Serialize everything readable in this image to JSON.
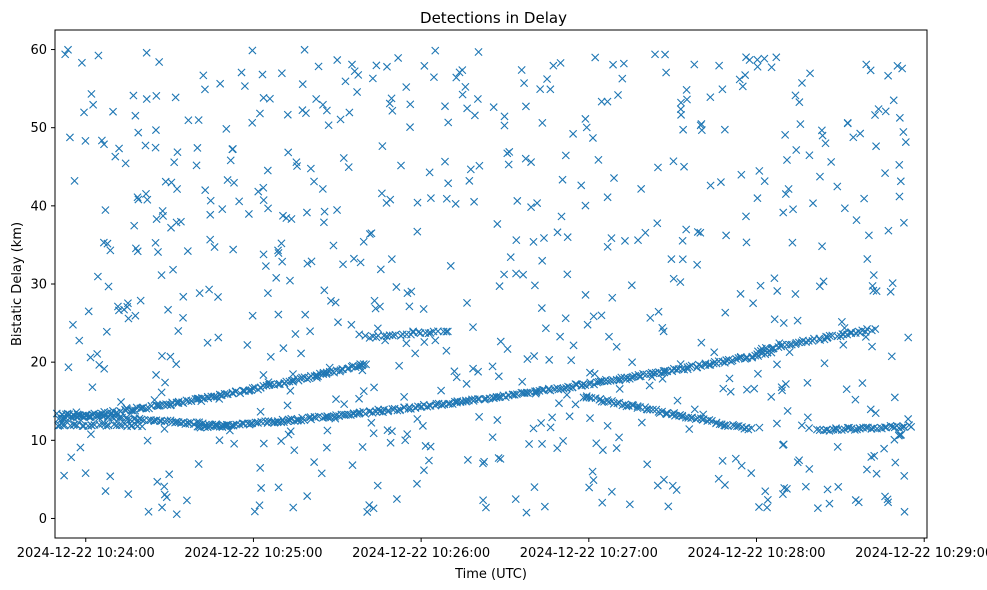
{
  "chart_data": {
    "type": "scatter",
    "title": "Detections in Delay",
    "xlabel": "Time (UTC)",
    "ylabel": "Bistatic Delay (km)",
    "xlim_seconds": [
      -11,
      301
    ],
    "ylim": [
      -2.5,
      62.5
    ],
    "x_origin": "2024-12-22 10:24:00",
    "xticks": [
      {
        "value": 0,
        "label": "2024-12-22 10:24:00"
      },
      {
        "value": 60,
        "label": "2024-12-22 10:25:00"
      },
      {
        "value": 120,
        "label": "2024-12-22 10:26:00"
      },
      {
        "value": 180,
        "label": "2024-12-22 10:27:00"
      },
      {
        "value": 240,
        "label": "2024-12-22 10:28:00"
      },
      {
        "value": 300,
        "label": "2024-12-22 10:29:00"
      }
    ],
    "yticks": [
      0,
      10,
      20,
      30,
      40,
      50,
      60
    ],
    "marker": "x",
    "color": "#1f77b4",
    "series": [
      {
        "name": "track-rising-1",
        "x_range": [
          -10,
          100
        ],
        "y_start": 12.8,
        "y_end": 19.8,
        "curve": "convex",
        "count": 150
      },
      {
        "name": "track-flat-upper-1",
        "x_range": [
          100,
          130
        ],
        "y_start": 23.2,
        "y_end": 24.0,
        "curve": "linear",
        "count": 25
      },
      {
        "name": "track-decaying-1",
        "x_range": [
          -10,
          50
        ],
        "y_start": 13.4,
        "y_end": 11.9,
        "curve": "linear",
        "count": 70
      },
      {
        "name": "track-rising-2",
        "x_range": [
          40,
          245
        ],
        "y_start": 11.6,
        "y_end": 21.2,
        "curve": "convex",
        "count": 260
      },
      {
        "name": "track-mid",
        "x_range": [
          178,
          238
        ],
        "y_start": 15.6,
        "y_end": 11.4,
        "curve": "linear",
        "count": 70
      },
      {
        "name": "track-rising-3",
        "x_range": [
          240,
          282
        ],
        "y_start": 21.5,
        "y_end": 24.2,
        "curve": "linear",
        "count": 45
      },
      {
        "name": "track-flat-lower-end",
        "x_range": [
          262,
          295
        ],
        "y_start": 11.3,
        "y_end": 11.8,
        "curve": "linear",
        "count": 40
      },
      {
        "name": "track-flat-lower-start",
        "x_range": [
          -10,
          20
        ],
        "y_start": 12.0,
        "y_end": 11.9,
        "curve": "linear",
        "count": 30
      },
      {
        "name": "clutter-noise",
        "x_range": [
          -10,
          295
        ],
        "y_range": [
          0.5,
          60
        ],
        "distribution": "uniform",
        "count": 700
      }
    ]
  }
}
